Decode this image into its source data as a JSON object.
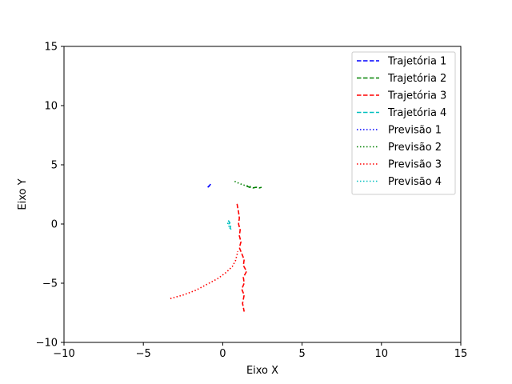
{
  "chart_data": {
    "type": "line",
    "xlabel": "Eixo X",
    "ylabel": "Eixo Y",
    "xlim": [
      -10,
      15
    ],
    "ylim": [
      -10,
      15
    ],
    "xticks": [
      -10,
      -5,
      0,
      5,
      10,
      15
    ],
    "yticks": [
      -10,
      -5,
      0,
      5,
      10,
      15
    ],
    "xtick_labels": [
      "−10",
      "−5",
      "0",
      "5",
      "10",
      "15"
    ],
    "ytick_labels": [
      "−10",
      "−5",
      "0",
      "5",
      "10",
      "15"
    ],
    "grid": false,
    "legend_position": "top-right",
    "series": [
      {
        "name": "Trajetória 1",
        "color": "#0000ff",
        "style": "dashed",
        "x": [
          -0.95,
          -0.85,
          -0.8,
          -0.75
        ],
        "y": [
          3.1,
          3.2,
          3.3,
          3.4
        ]
      },
      {
        "name": "Trajetória 2",
        "color": "#008000",
        "style": "dashed",
        "x": [
          1.5,
          1.7,
          1.9,
          2.1,
          2.3,
          2.45
        ],
        "y": [
          3.2,
          3.1,
          3.05,
          3.1,
          3.05,
          3.1
        ]
      },
      {
        "name": "Trajetória 3",
        "color": "#ff0000",
        "style": "dashed",
        "x": [
          0.9,
          1.0,
          1.05,
          1.0,
          1.1,
          1.05,
          1.15,
          1.05,
          1.2,
          1.35,
          1.3,
          1.5,
          1.3,
          1.35,
          1.2,
          1.35,
          1.25,
          1.35
        ],
        "y": [
          1.7,
          1.0,
          0.5,
          0.0,
          -0.5,
          -1.0,
          -1.5,
          -2.0,
          -2.5,
          -3.0,
          -3.5,
          -4.0,
          -4.5,
          -5.0,
          -5.5,
          -6.0,
          -6.7,
          -7.4
        ]
      },
      {
        "name": "Trajetória 4",
        "color": "#00bfbf",
        "style": "dashed",
        "x": [
          0.35,
          0.45,
          0.4,
          0.5,
          0.45
        ],
        "y": [
          0.3,
          0.1,
          0.0,
          -0.2,
          -0.4
        ]
      },
      {
        "name": "Previsão 1",
        "color": "#0000ff",
        "style": "dotted",
        "x": [
          -0.9,
          -0.85,
          -0.8
        ],
        "y": [
          3.15,
          3.25,
          3.35
        ]
      },
      {
        "name": "Previsão 2",
        "color": "#008000",
        "style": "dotted",
        "x": [
          0.75,
          1.0,
          1.3,
          1.6,
          1.9
        ],
        "y": [
          3.6,
          3.45,
          3.3,
          3.2,
          3.1
        ]
      },
      {
        "name": "Previsão 3",
        "color": "#ff0000",
        "style": "dotted",
        "x": [
          -3.3,
          -2.5,
          -1.7,
          -1.0,
          -0.3,
          0.2,
          0.6,
          0.8,
          0.9,
          0.95
        ],
        "y": [
          -6.3,
          -6.0,
          -5.6,
          -5.1,
          -4.6,
          -4.1,
          -3.6,
          -3.1,
          -2.6,
          -2.3
        ]
      },
      {
        "name": "Previsão 4",
        "color": "#00bfbf",
        "style": "dotted",
        "x": [
          0.3,
          0.4,
          0.5,
          0.6
        ],
        "y": [
          0.1,
          -0.2,
          -0.4,
          -0.6
        ]
      }
    ]
  }
}
